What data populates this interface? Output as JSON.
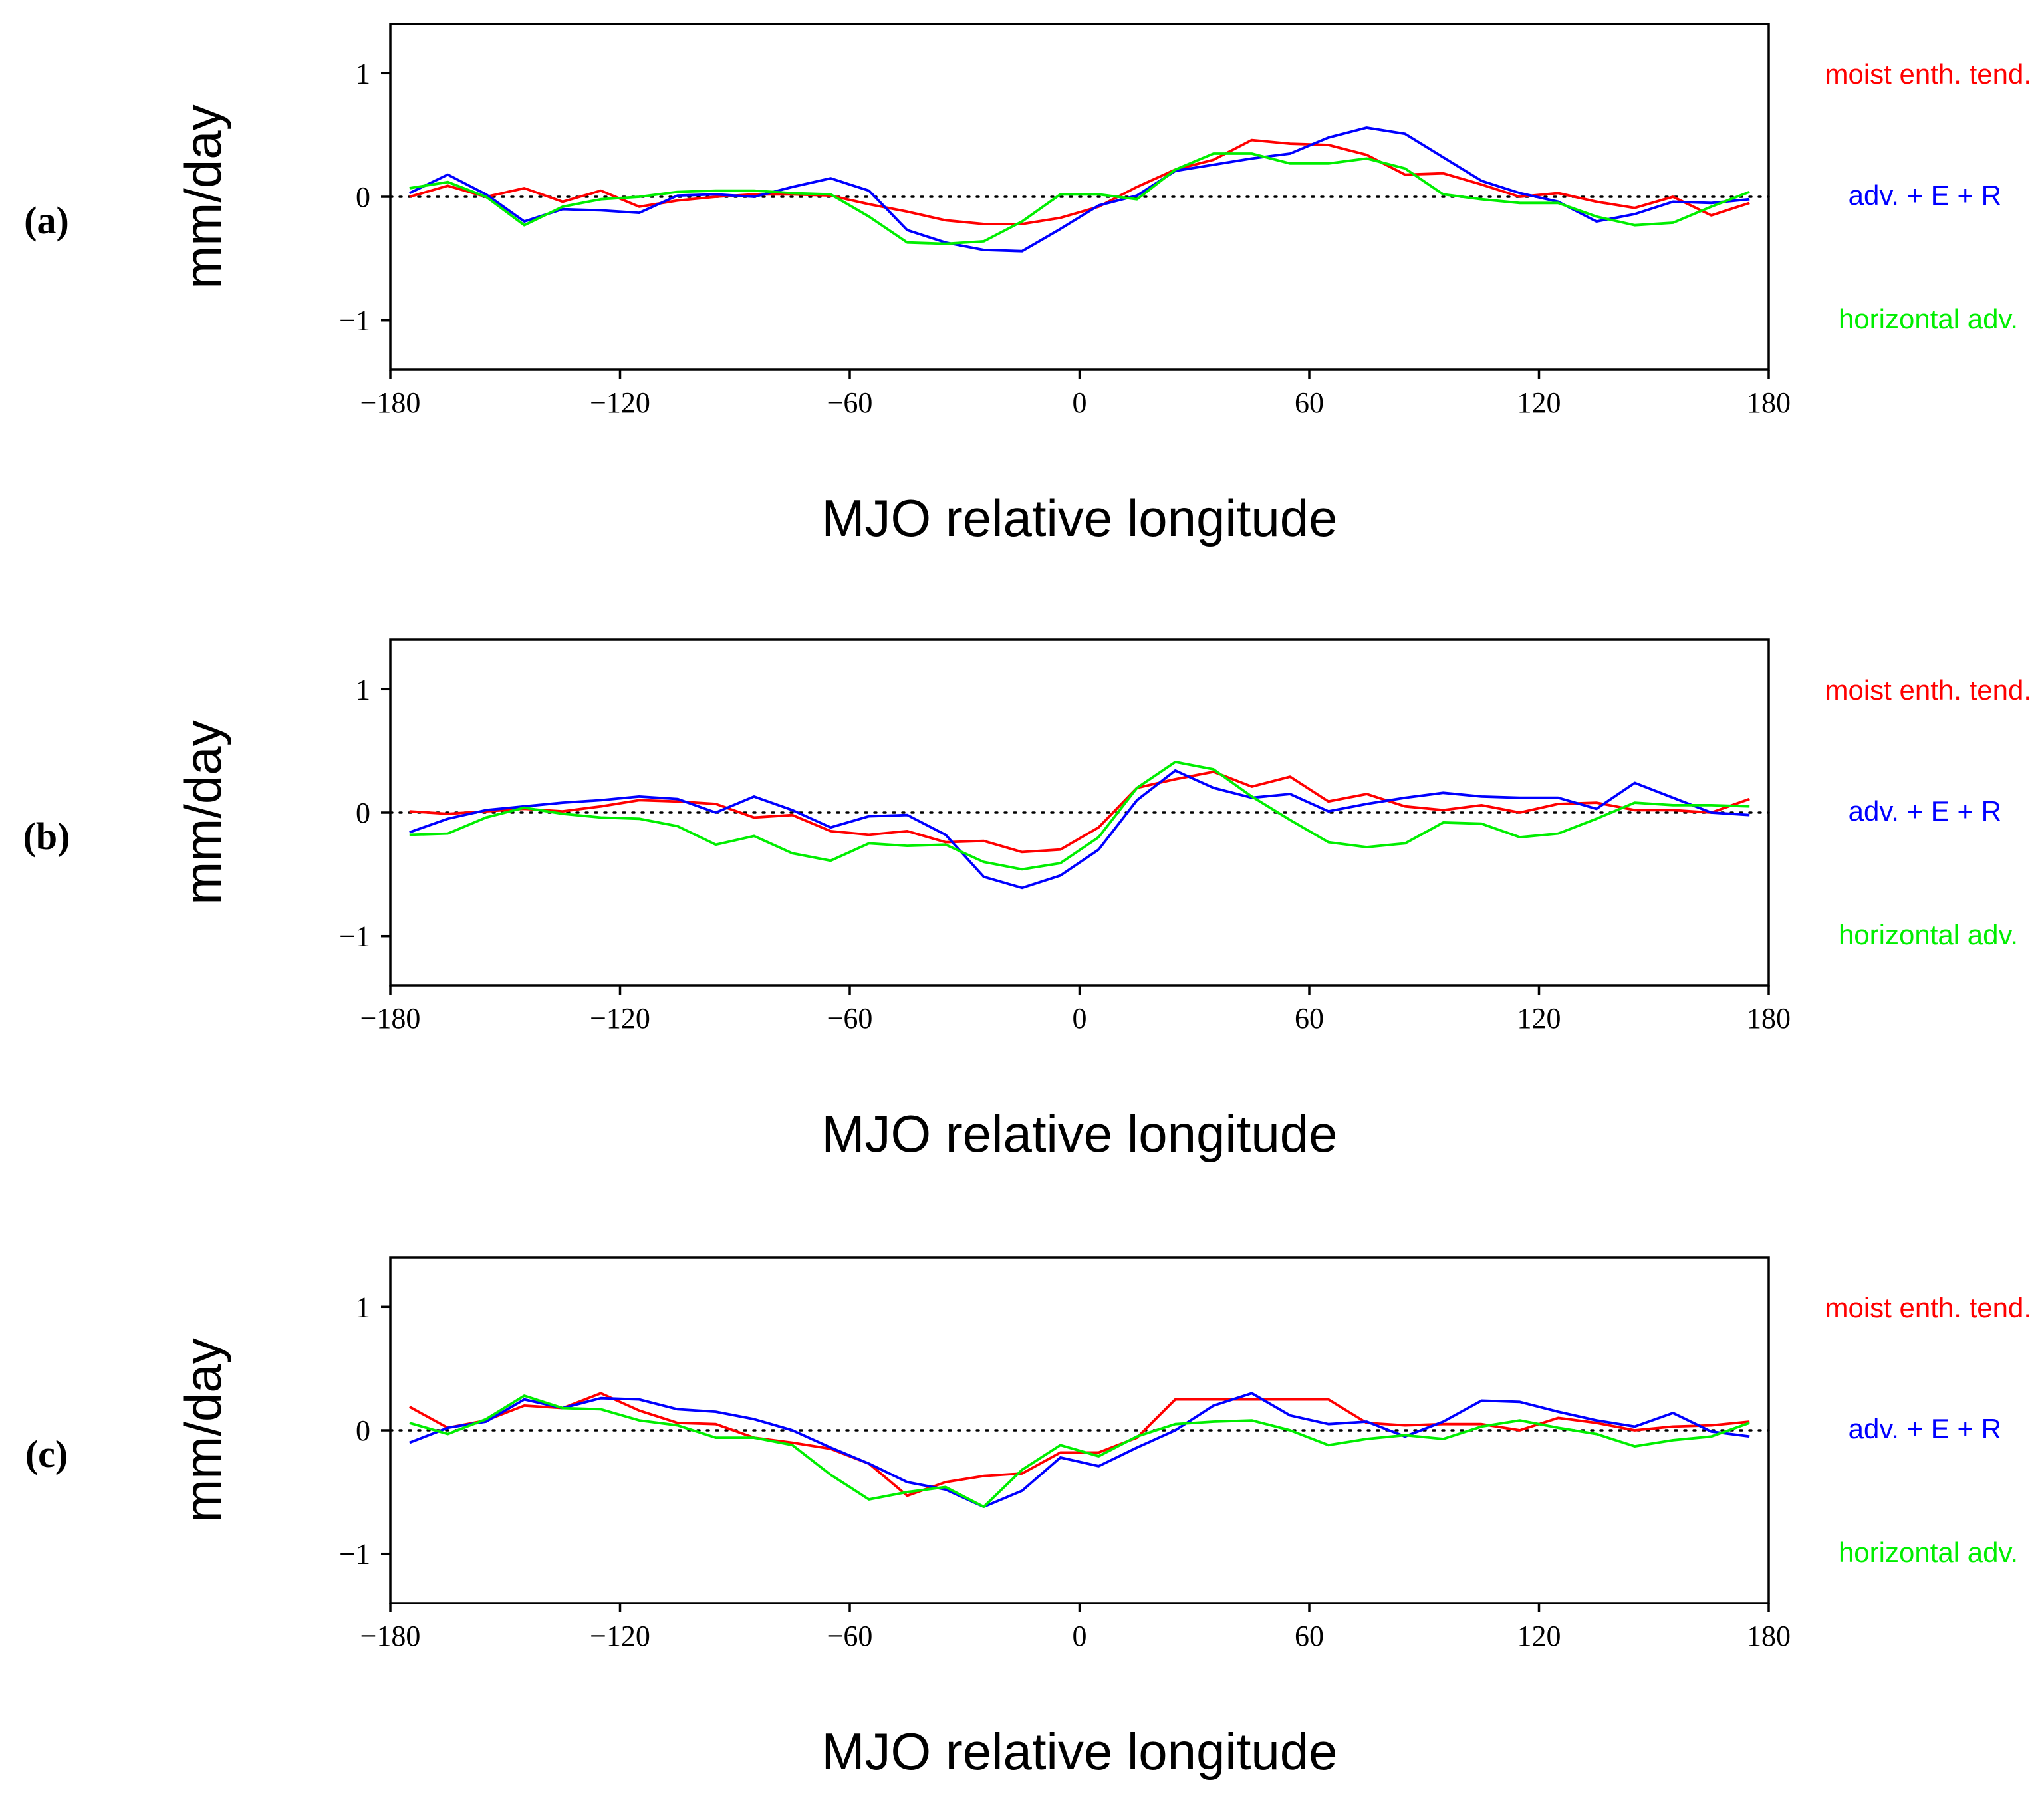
{
  "chart_data": [
    {
      "type": "line",
      "panel_label": "(a)",
      "xlabel": "MJO relative longitude",
      "ylabel": "mm/day",
      "xlim": [
        -180,
        180
      ],
      "ylim": [
        -1.4,
        1.4
      ],
      "xticks": [
        -180,
        -120,
        -60,
        0,
        60,
        120,
        180
      ],
      "xtick_labels": [
        "−180",
        "−120",
        "−60",
        "0",
        "60",
        "120",
        "180"
      ],
      "yticks": [
        1,
        0,
        -1
      ],
      "ytick_labels": [
        "1",
        "0",
        "−1"
      ],
      "zero_line": "dotted",
      "x": [
        -175,
        -165,
        -155,
        -145,
        -135,
        -125,
        -115,
        -105,
        -95,
        -85,
        -75,
        -65,
        -55,
        -45,
        -35,
        -25,
        -15,
        -5,
        5,
        15,
        25,
        35,
        45,
        55,
        65,
        75,
        85,
        95,
        105,
        115,
        125,
        135,
        145,
        155,
        165,
        175
      ],
      "series": [
        {
          "name": "moist enth. tend.",
          "color": "#ff0000",
          "values": [
            0.0,
            0.09,
            0.0,
            0.07,
            -0.04,
            0.05,
            -0.08,
            -0.03,
            0.0,
            0.02,
            0.02,
            0.01,
            -0.06,
            -0.12,
            -0.19,
            -0.22,
            -0.22,
            -0.17,
            -0.08,
            0.08,
            0.22,
            0.3,
            0.46,
            0.43,
            0.42,
            0.34,
            0.18,
            0.19,
            0.1,
            0.0,
            0.03,
            -0.04,
            -0.09,
            0.0,
            -0.15,
            -0.05
          ]
        },
        {
          "name": "adv. + E + R",
          "color": "#0000ff",
          "values": [
            0.03,
            0.18,
            0.02,
            -0.2,
            -0.1,
            -0.11,
            -0.13,
            0.01,
            0.02,
            0.0,
            0.08,
            0.15,
            0.05,
            -0.27,
            -0.37,
            -0.43,
            -0.44,
            -0.26,
            -0.07,
            0.01,
            0.21,
            0.26,
            0.31,
            0.35,
            0.48,
            0.56,
            0.51,
            0.32,
            0.13,
            0.03,
            -0.04,
            -0.2,
            -0.14,
            -0.04,
            -0.05,
            -0.02
          ]
        },
        {
          "name": "horizontal adv.",
          "color": "#00ee00",
          "values": [
            0.07,
            0.12,
            0.0,
            -0.23,
            -0.08,
            -0.02,
            0.0,
            0.04,
            0.05,
            0.05,
            0.03,
            0.02,
            -0.16,
            -0.37,
            -0.38,
            -0.36,
            -0.2,
            0.02,
            0.02,
            -0.02,
            0.22,
            0.35,
            0.35,
            0.27,
            0.27,
            0.31,
            0.23,
            0.02,
            -0.02,
            -0.05,
            -0.05,
            -0.16,
            -0.23,
            -0.21,
            -0.08,
            0.04
          ]
        }
      ]
    },
    {
      "type": "line",
      "panel_label": "(b)",
      "xlabel": "MJO relative longitude",
      "ylabel": "mm/day",
      "xlim": [
        -180,
        180
      ],
      "ylim": [
        -1.4,
        1.4
      ],
      "xticks": [
        -180,
        -120,
        -60,
        0,
        60,
        120,
        180
      ],
      "xtick_labels": [
        "−180",
        "−120",
        "−60",
        "0",
        "60",
        "120",
        "180"
      ],
      "yticks": [
        1,
        0,
        -1
      ],
      "ytick_labels": [
        "1",
        "0",
        "−1"
      ],
      "zero_line": "dotted",
      "x": [
        -175,
        -165,
        -155,
        -145,
        -135,
        -125,
        -115,
        -105,
        -95,
        -85,
        -75,
        -65,
        -55,
        -45,
        -35,
        -25,
        -15,
        -5,
        5,
        15,
        25,
        35,
        45,
        55,
        65,
        75,
        85,
        95,
        105,
        115,
        125,
        135,
        145,
        155,
        165,
        175
      ],
      "series": [
        {
          "name": "moist enth. tend.",
          "color": "#ff0000",
          "values": [
            0.01,
            -0.01,
            0.01,
            0.03,
            0.01,
            0.05,
            0.1,
            0.09,
            0.07,
            -0.04,
            -0.02,
            -0.15,
            -0.18,
            -0.15,
            -0.24,
            -0.23,
            -0.32,
            -0.3,
            -0.12,
            0.2,
            0.27,
            0.33,
            0.21,
            0.29,
            0.09,
            0.15,
            0.05,
            0.02,
            0.06,
            0.0,
            0.07,
            0.08,
            0.02,
            0.02,
            0.0,
            0.11
          ]
        },
        {
          "name": "adv. + E + R",
          "color": "#0000ff",
          "values": [
            -0.16,
            -0.05,
            0.02,
            0.05,
            0.08,
            0.1,
            0.13,
            0.11,
            0.0,
            0.13,
            0.02,
            -0.12,
            -0.03,
            -0.02,
            -0.18,
            -0.52,
            -0.61,
            -0.51,
            -0.3,
            0.1,
            0.34,
            0.2,
            0.12,
            0.15,
            0.01,
            0.07,
            0.12,
            0.16,
            0.13,
            0.12,
            0.12,
            0.03,
            0.24,
            0.12,
            0.0,
            -0.02
          ]
        },
        {
          "name": "horizontal adv.",
          "color": "#00ee00",
          "values": [
            -0.18,
            -0.17,
            -0.04,
            0.04,
            -0.01,
            -0.04,
            -0.05,
            -0.11,
            -0.26,
            -0.19,
            -0.33,
            -0.39,
            -0.25,
            -0.27,
            -0.26,
            -0.4,
            -0.46,
            -0.41,
            -0.2,
            0.2,
            0.41,
            0.35,
            0.13,
            -0.06,
            -0.24,
            -0.28,
            -0.25,
            -0.08,
            -0.09,
            -0.2,
            -0.17,
            -0.05,
            0.08,
            0.06,
            0.06,
            0.05
          ]
        }
      ]
    },
    {
      "type": "line",
      "panel_label": "(c)",
      "xlabel": "MJO relative longitude",
      "ylabel": "mm/day",
      "xlim": [
        -180,
        180
      ],
      "ylim": [
        -1.4,
        1.4
      ],
      "xticks": [
        -180,
        -120,
        -60,
        0,
        60,
        120,
        180
      ],
      "xtick_labels": [
        "−180",
        "−120",
        "−60",
        "0",
        "60",
        "120",
        "180"
      ],
      "yticks": [
        1,
        0,
        -1
      ],
      "ytick_labels": [
        "1",
        "0",
        "−1"
      ],
      "zero_line": "dotted",
      "x": [
        -175,
        -165,
        -155,
        -145,
        -135,
        -125,
        -115,
        -105,
        -95,
        -85,
        -75,
        -65,
        -55,
        -45,
        -35,
        -25,
        -15,
        -5,
        5,
        15,
        25,
        35,
        45,
        55,
        65,
        75,
        85,
        95,
        105,
        115,
        125,
        135,
        145,
        155,
        165,
        175
      ],
      "series": [
        {
          "name": "moist enth. tend.",
          "color": "#ff0000",
          "values": [
            0.19,
            0.02,
            0.08,
            0.2,
            0.18,
            0.3,
            0.16,
            0.06,
            0.05,
            -0.06,
            -0.1,
            -0.15,
            -0.27,
            -0.53,
            -0.42,
            -0.37,
            -0.35,
            -0.18,
            -0.18,
            -0.06,
            0.25,
            0.25,
            0.25,
            0.25,
            0.25,
            0.06,
            0.04,
            0.05,
            0.05,
            0.0,
            0.1,
            0.06,
            0.0,
            0.03,
            0.04,
            0.07
          ]
        },
        {
          "name": "adv. + E + R",
          "color": "#0000ff",
          "values": [
            -0.1,
            0.02,
            0.07,
            0.25,
            0.18,
            0.26,
            0.25,
            0.17,
            0.15,
            0.09,
            0.0,
            -0.14,
            -0.27,
            -0.42,
            -0.48,
            -0.62,
            -0.49,
            -0.22,
            -0.29,
            -0.14,
            0.0,
            0.2,
            0.3,
            0.12,
            0.05,
            0.07,
            -0.05,
            0.07,
            0.24,
            0.23,
            0.15,
            0.08,
            0.03,
            0.14,
            -0.01,
            -0.05
          ]
        },
        {
          "name": "horizontal adv.",
          "color": "#00ee00",
          "values": [
            0.06,
            -0.03,
            0.09,
            0.28,
            0.18,
            0.17,
            0.08,
            0.04,
            -0.06,
            -0.06,
            -0.12,
            -0.36,
            -0.56,
            -0.5,
            -0.46,
            -0.62,
            -0.32,
            -0.12,
            -0.21,
            -0.05,
            0.05,
            0.07,
            0.08,
            0.0,
            -0.12,
            -0.07,
            -0.04,
            -0.07,
            0.03,
            0.08,
            0.02,
            -0.03,
            -0.13,
            -0.08,
            -0.05,
            0.06
          ]
        }
      ]
    }
  ]
}
